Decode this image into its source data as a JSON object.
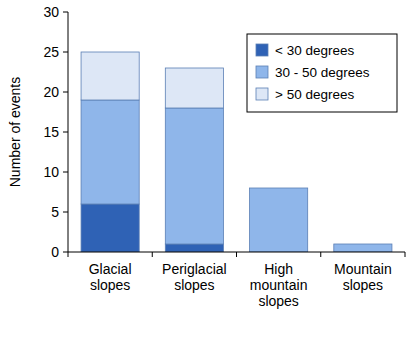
{
  "chart_data": {
    "type": "bar",
    "stacked": true,
    "y_label": "Number of events",
    "categories": [
      "Glacial slopes",
      "Periglacial slopes",
      "High mountain slopes",
      "Mountain slopes"
    ],
    "series": [
      {
        "name": "< 30 degrees",
        "color": "#2f62b5",
        "values": [
          6,
          1,
          0,
          0
        ]
      },
      {
        "name": "30 - 50 degrees",
        "color": "#8fb6ea",
        "values": [
          13,
          17,
          8,
          1
        ]
      },
      {
        "name": "> 50 degrees",
        "color": "#dde7f6",
        "values": [
          6,
          5,
          0,
          0
        ]
      }
    ],
    "ylim": [
      0,
      30
    ],
    "yticks": [
      0,
      5,
      10,
      15,
      20,
      25,
      30
    ],
    "grid": false,
    "legend": "upper right"
  }
}
